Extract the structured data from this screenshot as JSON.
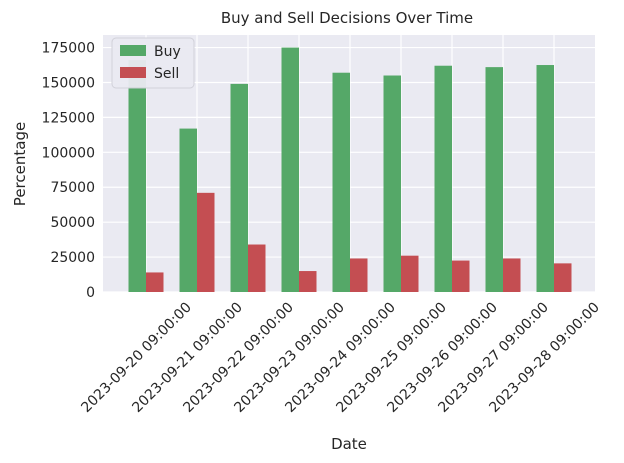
{
  "chart_data": {
    "type": "bar",
    "title": "Buy and Sell Decisions Over Time",
    "xlabel": "Date",
    "ylabel": "Percentage",
    "categories": [
      "2023-09-20 09:00:00",
      "2023-09-21 09:00:00",
      "2023-09-22 09:00:00",
      "2023-09-23 09:00:00",
      "2023-09-24 09:00:00",
      "2023-09-25 09:00:00",
      "2023-09-26 09:00:00",
      "2023-09-27 09:00:00",
      "2023-09-28 09:00:00"
    ],
    "series": [
      {
        "name": "Buy",
        "color": "#55a868",
        "values": [
          166000,
          117000,
          149000,
          175000,
          157000,
          155000,
          162000,
          161000,
          162500
        ]
      },
      {
        "name": "Sell",
        "color": "#c44e52",
        "values": [
          14000,
          71000,
          34000,
          15000,
          24000,
          26000,
          22500,
          24000,
          20500
        ]
      }
    ],
    "ylim": [
      0,
      184000
    ],
    "yticks": [
      0,
      25000,
      50000,
      75000,
      100000,
      125000,
      150000,
      175000
    ],
    "grid": true,
    "legend_position": "top-left",
    "background": "#eaeaf2"
  }
}
